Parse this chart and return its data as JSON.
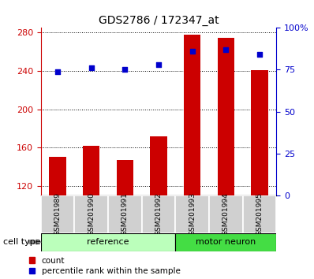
{
  "title": "GDS2786 / 172347_at",
  "samples": [
    "GSM201989",
    "GSM201990",
    "GSM201991",
    "GSM201992",
    "GSM201993",
    "GSM201994",
    "GSM201995"
  ],
  "counts": [
    150,
    162,
    147,
    172,
    278,
    275,
    241
  ],
  "percentile_ranks": [
    74,
    76,
    75,
    78,
    86,
    87,
    84
  ],
  "ylim_left": [
    110,
    285
  ],
  "ylim_right": [
    0,
    100
  ],
  "yticks_left": [
    120,
    160,
    200,
    240,
    280
  ],
  "yticks_right": [
    0,
    25,
    50,
    75,
    100
  ],
  "ytick_labels_right": [
    "0",
    "25",
    "50",
    "75",
    "100%"
  ],
  "bar_color": "#cc0000",
  "dot_color": "#0000cc",
  "bar_width": 0.5,
  "group_info": [
    {
      "indices": [
        0,
        1,
        2,
        3
      ],
      "label": "reference",
      "color": "#bbffbb"
    },
    {
      "indices": [
        4,
        5,
        6
      ],
      "label": "motor neuron",
      "color": "#44dd44"
    }
  ],
  "cell_type_label": "cell type",
  "legend_items": [
    {
      "label": "count",
      "color": "#cc0000"
    },
    {
      "label": "percentile rank within the sample",
      "color": "#0000cc"
    }
  ],
  "title_fontsize": 10,
  "tick_fontsize": 8,
  "sample_label_fontsize": 6.5,
  "group_label_fontsize": 8,
  "legend_fontsize": 7.5,
  "cell_type_fontsize": 8
}
